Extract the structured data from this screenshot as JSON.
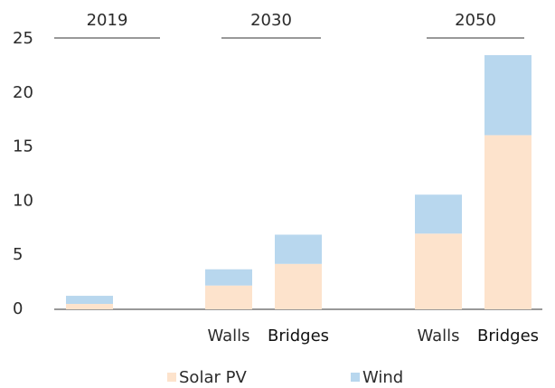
{
  "chart_data": {
    "type": "bar",
    "stacked": true,
    "groups": [
      "2019",
      "2030",
      "2050"
    ],
    "categories": [
      null,
      "Walls",
      "Bridges",
      "Walls",
      "Bridges"
    ],
    "series": [
      {
        "name": "Solar PV",
        "color": "#fde3cc",
        "values": [
          0.5,
          2.2,
          4.2,
          7.0,
          16.1
        ]
      },
      {
        "name": "Wind",
        "color": "#b8d7ee",
        "values": [
          0.75,
          1.5,
          2.7,
          3.6,
          7.4
        ]
      }
    ],
    "ylim": [
      0,
      25
    ],
    "yticks": [
      0,
      5,
      10,
      15,
      20,
      25
    ],
    "grid": false
  }
}
